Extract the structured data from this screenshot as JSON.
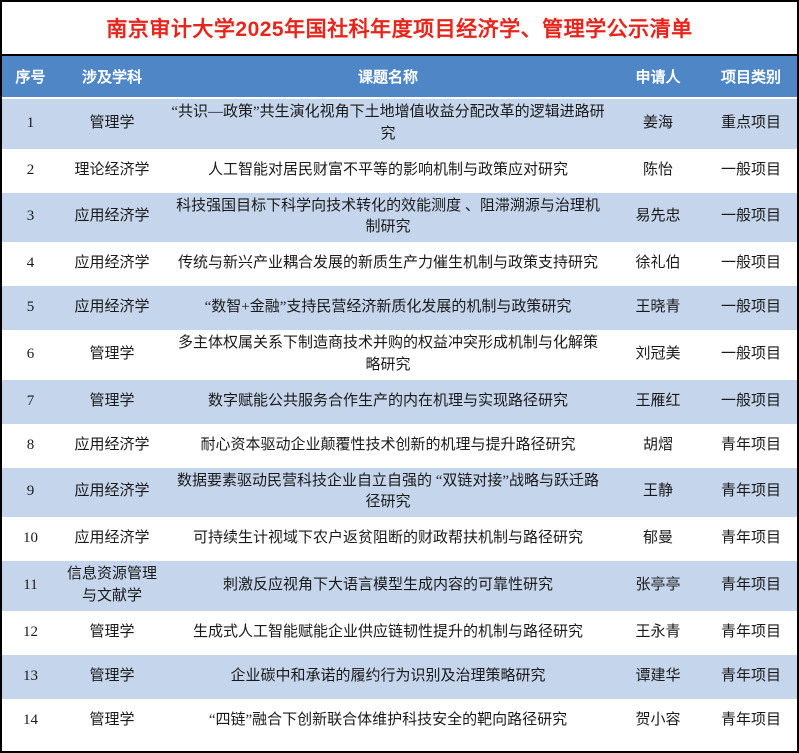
{
  "page": {
    "title": "南京审计大学2025年国社科年度项目经济学、管理学公示清单"
  },
  "colors": {
    "title_red": "#e8251c",
    "header_bg": "#4e86c6",
    "header_text": "#ffffff",
    "band_bg": "#c5d5ec",
    "body_text": "#1a1a1a",
    "border_black": "#000000"
  },
  "table": {
    "headers": [
      "序号",
      "涉及学科",
      "课题名称",
      "申请人",
      "项目类别"
    ],
    "rows": [
      {
        "no": "1",
        "subject": "管理学",
        "topic": "“共识—政策”共生演化视角下土地增值收益分配改革的逻辑进路研究",
        "applicant": "姜海",
        "category": "重点项目"
      },
      {
        "no": "2",
        "subject": "理论经济学",
        "topic": "人工智能对居民财富不平等的影响机制与政策应对研究",
        "applicant": "陈怡",
        "category": "一般项目"
      },
      {
        "no": "3",
        "subject": "应用经济学",
        "topic": "科技强国目标下科学向技术转化的效能测度 、阻滞溯源与治理机制研究",
        "applicant": "易先忠",
        "category": "一般项目"
      },
      {
        "no": "4",
        "subject": "应用经济学",
        "topic": "传统与新兴产业耦合发展的新质生产力催生机制与政策支持研究",
        "applicant": "徐礼伯",
        "category": "一般项目"
      },
      {
        "no": "5",
        "subject": "应用经济学",
        "topic": "“数智+金融”支持民营经济新质化发展的机制与政策研究",
        "applicant": "王晓青",
        "category": "一般项目"
      },
      {
        "no": "6",
        "subject": "管理学",
        "topic": "多主体权属关系下制造商技术并购的权益冲突形成机制与化解策略研究",
        "applicant": "刘冠美",
        "category": "一般项目"
      },
      {
        "no": "7",
        "subject": "管理学",
        "topic": "数字赋能公共服务合作生产的内在机理与实现路径研究",
        "applicant": "王雁红",
        "category": "一般项目"
      },
      {
        "no": "8",
        "subject": "应用经济学",
        "topic": "耐心资本驱动企业颠覆性技术创新的机理与提升路径研究",
        "applicant": "胡熠",
        "category": "青年项目"
      },
      {
        "no": "9",
        "subject": "应用经济学",
        "topic": "数据要素驱动民营科技企业自立自强的 “双链对接”战略与跃迁路径研究",
        "applicant": "王静",
        "category": "青年项目"
      },
      {
        "no": "10",
        "subject": "应用经济学",
        "topic": "可持续生计视域下农户返贫阻断的财政帮扶机制与路径研究",
        "applicant": "郁曼",
        "category": "青年项目"
      },
      {
        "no": "11",
        "subject": "信息资源管理与文献学",
        "topic": "刺激反应视角下大语言模型生成内容的可靠性研究",
        "applicant": "张亭亭",
        "category": "青年项目"
      },
      {
        "no": "12",
        "subject": "管理学",
        "topic": "生成式人工智能赋能企业供应链韧性提升的机制与路径研究",
        "applicant": "王永青",
        "category": "青年项目"
      },
      {
        "no": "13",
        "subject": "管理学",
        "topic": "企业碳中和承诺的履约行为识别及治理策略研究",
        "applicant": "谭建华",
        "category": "青年项目"
      },
      {
        "no": "14",
        "subject": "管理学",
        "topic": "“四链”融合下创新联合体维护科技安全的靶向路径研究",
        "applicant": "贺小容",
        "category": "青年项目"
      }
    ]
  }
}
